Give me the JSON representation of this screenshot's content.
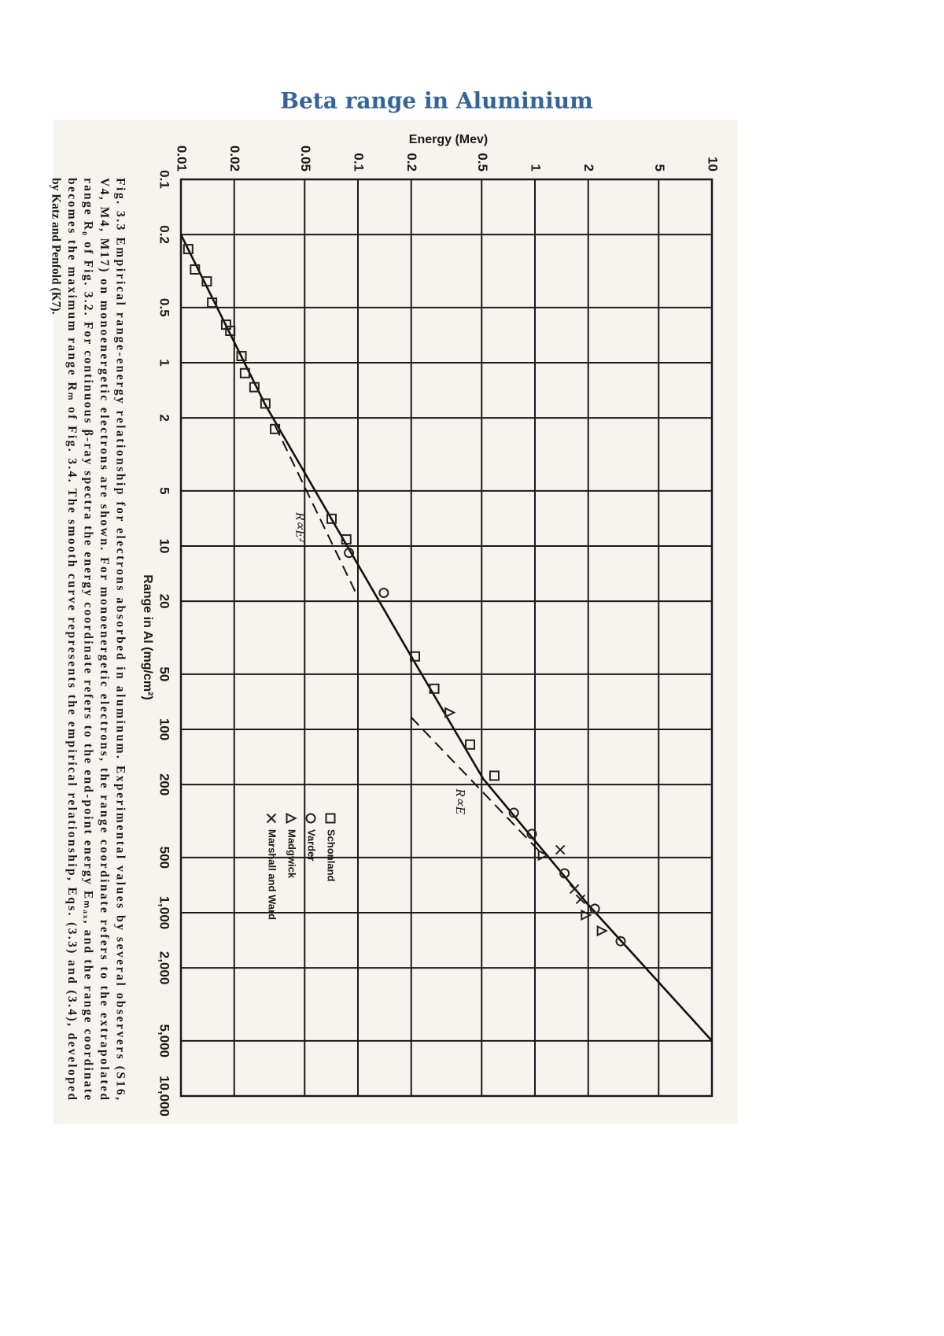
{
  "heading": "Beta range in Aluminium",
  "chart_data": {
    "type": "scatter",
    "x_label": "Range in Al (mg/cm²)",
    "y_label": "Energy (Mev)",
    "log": true,
    "grid": true,
    "xlim": [
      0.1,
      10000
    ],
    "ylim": [
      0.01,
      10
    ],
    "xticks": [
      0.1,
      0.2,
      0.5,
      1,
      2,
      5,
      10,
      20,
      50,
      100,
      200,
      500,
      {
        "value": 1000,
        "label": "1,000"
      },
      {
        "value": 2000,
        "label": "2,000"
      },
      {
        "value": 5000,
        "label": "5,000"
      },
      {
        "value": 10000,
        "label": "10,000"
      }
    ],
    "yticks": [
      0.01,
      0.02,
      0.05,
      0.1,
      0.2,
      0.5,
      1,
      2,
      5,
      10
    ],
    "series": [
      {
        "name": "Schonland",
        "marker": "square",
        "color": "#222222",
        "x": [
          0.24,
          0.31,
          0.36,
          0.47,
          0.62,
          0.67,
          0.92,
          1.14,
          1.36,
          1.67,
          2.3,
          7.1,
          9.2,
          40,
          60,
          121,
          179
        ],
        "values": [
          0.011,
          0.012,
          0.014,
          0.015,
          0.018,
          0.019,
          0.022,
          0.023,
          0.026,
          0.03,
          0.034,
          0.071,
          0.086,
          0.21,
          0.27,
          0.43,
          0.59
        ]
      },
      {
        "name": "Varder",
        "marker": "circle",
        "color": "#222222",
        "x": [
          10.9,
          18,
          285,
          372,
          610,
          952,
          1430
        ],
        "values": [
          0.089,
          0.14,
          0.76,
          0.96,
          1.47,
          2.18,
          3.05
        ]
      },
      {
        "name": "Madgwick",
        "marker": "triangle",
        "color": "#222222",
        "x": [
          81,
          486,
          1030,
          1256
        ],
        "values": [
          0.33,
          1.11,
          1.94,
          2.39
        ]
      },
      {
        "name": "Marshall and Ward",
        "marker": "x",
        "color": "#222222",
        "x": [
          454,
          743,
          845
        ],
        "values": [
          1.39,
          1.67,
          1.81
        ]
      }
    ],
    "curves": [
      {
        "style": "solid",
        "x": [
          0.2,
          1.7,
          40,
          186,
          905,
          5000
        ],
        "values": [
          0.01,
          0.03,
          0.2,
          0.51,
          2.0,
          10
        ]
      },
      {
        "style": "dashed",
        "label": "R∝E²",
        "x": [
          2.2,
          19
        ],
        "values": [
          0.034,
          0.1
        ]
      },
      {
        "style": "dashed",
        "label": "R∝E",
        "x": [
          86,
          480
        ],
        "values": [
          0.2,
          1.1
        ]
      }
    ],
    "caption": [
      "Fig. 3.3  Empirical range-energy relationship for electrons absorbed in aluminum.  Experimental values by several observers (S16,",
      "V4, M4, M17) on monoenergetic electrons are shown.  For monoenergetic electrons, the range coordinate refers to the extrapolated",
      "range R₀ of Fig. 3.2.  For continuous β-ray spectra the energy coordinate refers to the end-point energy Eₘₐₓ, and the range coordinate",
      "becomes the maximum range Rₘ of Fig. 3.4.  The smooth curve represents the empirical relationship, Eqs. (3.3) and (3.4), developed",
      "by Katz and Penfold (K7)."
    ]
  }
}
